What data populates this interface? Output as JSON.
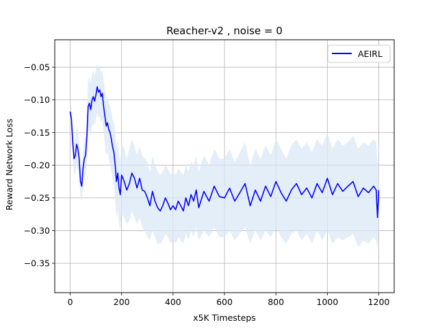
{
  "chart_data": {
    "type": "line",
    "title": "Reacher-v2 , noise = 0",
    "xlabel": "x5K Timesteps",
    "ylabel": "Reward Network Loss",
    "xlim": [
      -60,
      1260
    ],
    "ylim": [
      -0.395,
      -0.008
    ],
    "xticks": [
      0,
      200,
      400,
      600,
      800,
      1000,
      1200
    ],
    "xtick_labels": [
      "0",
      "200",
      "400",
      "600",
      "800",
      "1000",
      "1200"
    ],
    "yticks": [
      -0.35,
      -0.3,
      -0.25,
      -0.2,
      -0.15,
      -0.1,
      -0.05
    ],
    "ytick_labels": [
      "−0.35",
      "−0.30",
      "−0.25",
      "−0.20",
      "−0.15",
      "−0.10",
      "−0.05"
    ],
    "grid": true,
    "legend_position": "top-right",
    "series": [
      {
        "name": "AEIRL",
        "color": "#0000ff",
        "band_color": "#dbe8f5",
        "x": [
          0,
          5,
          10,
          15,
          20,
          25,
          30,
          35,
          40,
          45,
          50,
          55,
          60,
          65,
          70,
          75,
          80,
          85,
          90,
          95,
          100,
          105,
          110,
          115,
          120,
          125,
          130,
          135,
          140,
          145,
          150,
          155,
          160,
          165,
          170,
          175,
          180,
          185,
          190,
          195,
          200,
          210,
          220,
          230,
          240,
          250,
          260,
          270,
          280,
          290,
          300,
          310,
          320,
          330,
          340,
          350,
          360,
          370,
          380,
          390,
          400,
          410,
          420,
          430,
          440,
          450,
          460,
          470,
          480,
          490,
          500,
          520,
          540,
          560,
          580,
          600,
          620,
          640,
          660,
          680,
          700,
          720,
          740,
          760,
          780,
          800,
          820,
          840,
          860,
          880,
          900,
          920,
          940,
          960,
          980,
          1000,
          1020,
          1040,
          1060,
          1080,
          1100,
          1120,
          1140,
          1160,
          1180,
          1190,
          1195,
          1200
        ],
        "y": [
          -0.118,
          -0.13,
          -0.165,
          -0.19,
          -0.185,
          -0.168,
          -0.175,
          -0.19,
          -0.225,
          -0.232,
          -0.205,
          -0.19,
          -0.185,
          -0.155,
          -0.11,
          -0.105,
          -0.115,
          -0.1,
          -0.095,
          -0.102,
          -0.093,
          -0.08,
          -0.088,
          -0.085,
          -0.095,
          -0.09,
          -0.11,
          -0.125,
          -0.14,
          -0.135,
          -0.145,
          -0.15,
          -0.16,
          -0.172,
          -0.18,
          -0.2,
          -0.225,
          -0.212,
          -0.235,
          -0.245,
          -0.215,
          -0.225,
          -0.238,
          -0.228,
          -0.212,
          -0.22,
          -0.235,
          -0.22,
          -0.238,
          -0.24,
          -0.25,
          -0.262,
          -0.24,
          -0.255,
          -0.265,
          -0.27,
          -0.262,
          -0.25,
          -0.258,
          -0.268,
          -0.262,
          -0.268,
          -0.255,
          -0.262,
          -0.27,
          -0.25,
          -0.262,
          -0.245,
          -0.255,
          -0.238,
          -0.265,
          -0.24,
          -0.255,
          -0.232,
          -0.248,
          -0.25,
          -0.235,
          -0.255,
          -0.242,
          -0.228,
          -0.262,
          -0.238,
          -0.255,
          -0.232,
          -0.248,
          -0.225,
          -0.242,
          -0.255,
          -0.238,
          -0.228,
          -0.245,
          -0.235,
          -0.25,
          -0.228,
          -0.242,
          -0.22,
          -0.245,
          -0.228,
          -0.24,
          -0.232,
          -0.225,
          -0.248,
          -0.235,
          -0.242,
          -0.232,
          -0.238,
          -0.28,
          -0.238
        ],
        "band_lower": [
          -0.13,
          -0.15,
          -0.19,
          -0.215,
          -0.21,
          -0.2,
          -0.205,
          -0.215,
          -0.25,
          -0.255,
          -0.235,
          -0.22,
          -0.215,
          -0.19,
          -0.15,
          -0.145,
          -0.155,
          -0.14,
          -0.135,
          -0.14,
          -0.13,
          -0.12,
          -0.128,
          -0.125,
          -0.135,
          -0.13,
          -0.15,
          -0.17,
          -0.185,
          -0.18,
          -0.19,
          -0.2,
          -0.21,
          -0.22,
          -0.23,
          -0.255,
          -0.28,
          -0.27,
          -0.29,
          -0.3,
          -0.275,
          -0.28,
          -0.29,
          -0.285,
          -0.27,
          -0.28,
          -0.29,
          -0.28,
          -0.295,
          -0.3,
          -0.31,
          -0.315,
          -0.3,
          -0.31,
          -0.32,
          -0.32,
          -0.315,
          -0.305,
          -0.31,
          -0.32,
          -0.315,
          -0.32,
          -0.31,
          -0.315,
          -0.32,
          -0.305,
          -0.315,
          -0.3,
          -0.31,
          -0.295,
          -0.315,
          -0.3,
          -0.31,
          -0.295,
          -0.31,
          -0.31,
          -0.3,
          -0.315,
          -0.305,
          -0.295,
          -0.32,
          -0.3,
          -0.315,
          -0.3,
          -0.31,
          -0.295,
          -0.31,
          -0.32,
          -0.305,
          -0.3,
          -0.315,
          -0.305,
          -0.32,
          -0.3,
          -0.315,
          -0.3,
          -0.32,
          -0.31,
          -0.315,
          -0.31,
          -0.305,
          -0.325,
          -0.315,
          -0.32,
          -0.31,
          -0.315,
          -0.33,
          -0.3
        ],
        "band_upper": [
          -0.105,
          -0.11,
          -0.14,
          -0.165,
          -0.16,
          -0.14,
          -0.145,
          -0.165,
          -0.2,
          -0.205,
          -0.175,
          -0.16,
          -0.155,
          -0.12,
          -0.07,
          -0.065,
          -0.075,
          -0.06,
          -0.055,
          -0.062,
          -0.055,
          -0.045,
          -0.05,
          -0.048,
          -0.058,
          -0.055,
          -0.07,
          -0.085,
          -0.1,
          -0.095,
          -0.105,
          -0.11,
          -0.12,
          -0.13,
          -0.135,
          -0.15,
          -0.175,
          -0.16,
          -0.185,
          -0.195,
          -0.165,
          -0.175,
          -0.19,
          -0.175,
          -0.16,
          -0.17,
          -0.185,
          -0.17,
          -0.185,
          -0.19,
          -0.195,
          -0.21,
          -0.185,
          -0.2,
          -0.21,
          -0.215,
          -0.21,
          -0.2,
          -0.205,
          -0.215,
          -0.21,
          -0.215,
          -0.205,
          -0.21,
          -0.215,
          -0.2,
          -0.21,
          -0.195,
          -0.2,
          -0.185,
          -0.21,
          -0.185,
          -0.2,
          -0.175,
          -0.19,
          -0.19,
          -0.175,
          -0.195,
          -0.18,
          -0.165,
          -0.2,
          -0.175,
          -0.19,
          -0.17,
          -0.185,
          -0.16,
          -0.175,
          -0.19,
          -0.17,
          -0.16,
          -0.175,
          -0.165,
          -0.18,
          -0.16,
          -0.17,
          -0.15,
          -0.175,
          -0.16,
          -0.17,
          -0.165,
          -0.155,
          -0.175,
          -0.165,
          -0.17,
          -0.16,
          -0.165,
          -0.2,
          -0.165
        ]
      }
    ]
  }
}
